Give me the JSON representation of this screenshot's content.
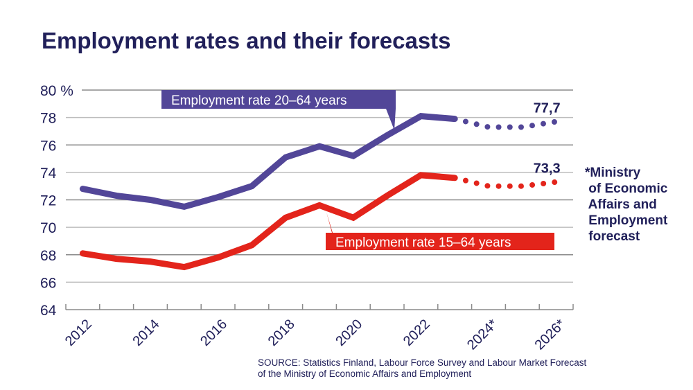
{
  "chart_data": {
    "type": "line",
    "title": "Employment rates and their forecasts",
    "xlabel": "",
    "ylabel": "%",
    "ylim": [
      64,
      80
    ],
    "yticks": [
      64,
      66,
      68,
      70,
      72,
      74,
      76,
      78,
      80
    ],
    "ytick_labels": [
      "64",
      "66",
      "68",
      "70",
      "72",
      "74",
      "76",
      "78",
      "80 %"
    ],
    "x": [
      2012,
      2013,
      2014,
      2015,
      2016,
      2017,
      2018,
      2019,
      2020,
      2021,
      2022,
      2023,
      2024,
      2025,
      2026
    ],
    "xtick_labels": [
      {
        "year": 2012,
        "label": "2012"
      },
      {
        "year": 2014,
        "label": "2014"
      },
      {
        "year": 2016,
        "label": "2016"
      },
      {
        "year": 2018,
        "label": "2018"
      },
      {
        "year": 2020,
        "label": "2020"
      },
      {
        "year": 2022,
        "label": "2022"
      },
      {
        "year": 2024,
        "label": "2024*"
      },
      {
        "year": 2026,
        "label": "2026*"
      }
    ],
    "grid": true,
    "forecast_start_year": 2023,
    "series": [
      {
        "name": "Employment rate 20–64 years",
        "color": "#524698",
        "values": [
          72.8,
          72.3,
          72.0,
          71.5,
          72.2,
          73.0,
          75.1,
          75.9,
          75.2,
          76.7,
          78.1,
          77.9,
          77.3,
          77.3,
          77.7
        ],
        "end_label": "77,7",
        "legend_placement": "top-center"
      },
      {
        "name": "Employment rate 15–64 years",
        "color": "#e3241b",
        "values": [
          68.1,
          67.7,
          67.5,
          67.1,
          67.8,
          68.7,
          70.7,
          71.6,
          70.7,
          72.3,
          73.8,
          73.6,
          73.0,
          73.0,
          73.3
        ],
        "end_label": "73,3",
        "legend_placement": "center-right"
      }
    ],
    "annotations": [
      "*Ministry\n of Economic\n Affairs and\n Employment\n forecast"
    ]
  },
  "note": "*Ministry\n of Economic\n Affairs and\n Employment\n forecast",
  "source_line1": "SOURCE: Statistics Finland, Labour Force Survey and Labour Market Forecast",
  "source_line2": "of the Ministry of Economic Affairs and Employment",
  "colors": {
    "title": "#21205a",
    "series_20_64": "#524698",
    "series_15_64": "#e3241b",
    "grid": "#9a9a9a"
  }
}
